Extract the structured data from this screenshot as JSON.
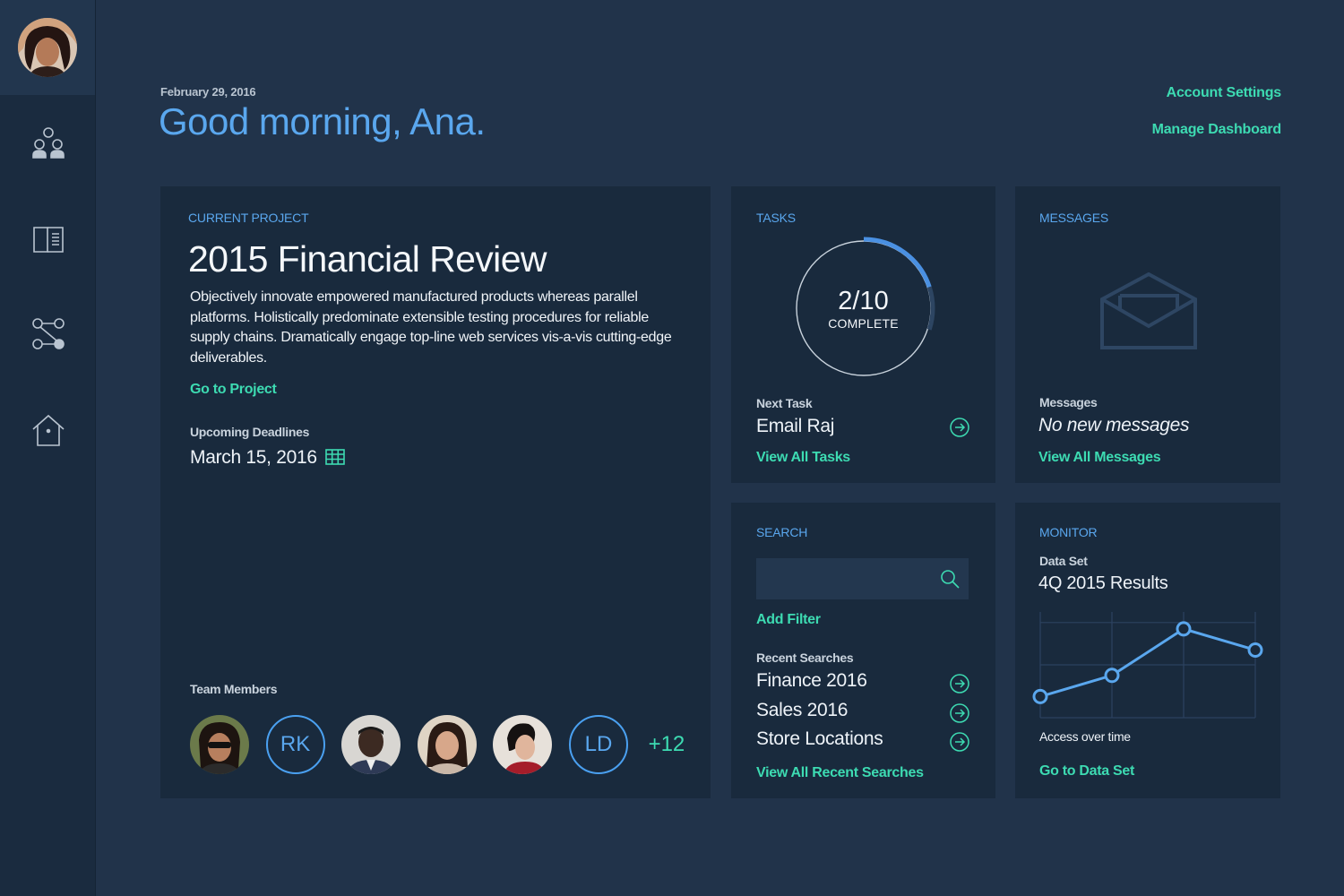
{
  "header": {
    "date": "February 29, 2016",
    "greeting": "Good morning, Ana.",
    "account_settings": "Account Settings",
    "manage_dashboard": "Manage Dashboard"
  },
  "project": {
    "label": "CURRENT PROJECT",
    "title": "2015 Financial Review",
    "description": "Objectively innovate empowered manufactured products whereas parallel platforms. Holistically predominate extensible testing procedures for reliable supply chains. Dramatically engage top-line web services vis-a-vis cutting-edge deliverables.",
    "go_link": "Go to Project",
    "deadlines_label": "Upcoming Deadlines",
    "deadline": "March 15, 2016",
    "team_label": "Team Members",
    "team_initials": [
      "RK",
      "LD"
    ],
    "team_more": "+12"
  },
  "tasks": {
    "label": "TASKS",
    "progress_text": "2/10",
    "complete_label": "COMPLETE",
    "progress_fraction": 0.2,
    "next_label": "Next Task",
    "next_task": "Email Raj",
    "view_all": "View All Tasks"
  },
  "messages": {
    "label": "MESSAGES",
    "sub_label": "Messages",
    "status": "No new messages",
    "view_all": "View All Messages"
  },
  "search": {
    "label": "SEARCH",
    "placeholder": "",
    "add_filter": "Add Filter",
    "recent_label": "Recent Searches",
    "recent": [
      "Finance 2016",
      "Sales 2016",
      "Store Locations"
    ],
    "view_all": "View All Recent Searches"
  },
  "monitor": {
    "label": "MONITOR",
    "data_set_label": "Data Set",
    "data_set": "4Q 2015 Results",
    "caption": "Access over time",
    "go_link": "Go to Data Set"
  },
  "chart_data": {
    "type": "line",
    "x": [
      1,
      2,
      3,
      4
    ],
    "series": [
      {
        "values": [
          2,
          4,
          8.4,
          6.4
        ]
      }
    ],
    "ylim": [
      0,
      10
    ],
    "grid": true,
    "xlabel": "Access over time"
  },
  "icons": {
    "nav": [
      "people-icon",
      "book-icon",
      "workflow-icon",
      "home-icon"
    ]
  },
  "colors": {
    "accent_blue": "#5aa7ee",
    "accent_green": "#3ddbb2",
    "card_bg": "#192a3d",
    "page_bg": "#21334a"
  }
}
